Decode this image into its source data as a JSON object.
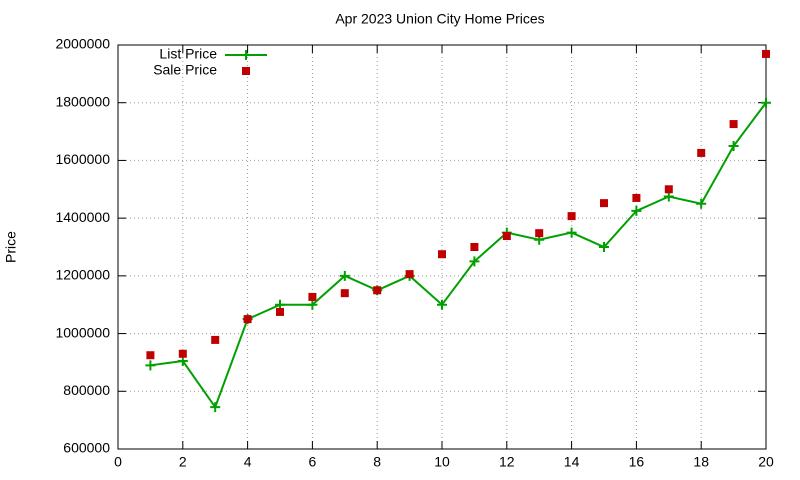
{
  "chart_data": {
    "type": "line",
    "title": "Apr 2023 Union City Home Prices",
    "ylabel": "Price",
    "x": [
      1,
      2,
      3,
      4,
      5,
      6,
      7,
      8,
      9,
      10,
      11,
      12,
      13,
      14,
      15,
      16,
      17,
      18,
      19,
      20
    ],
    "series": [
      {
        "name": "List Price",
        "color": "#00a000",
        "line": true,
        "marker": "plus",
        "values": [
          890000,
          905000,
          745000,
          1050000,
          1100000,
          1100000,
          1200000,
          1150000,
          1200000,
          1100000,
          1250000,
          1350000,
          1325000,
          1350000,
          1300000,
          1425000,
          1475000,
          1450000,
          1650000,
          1800000
        ]
      },
      {
        "name": "Sale Price",
        "color": "#c00000",
        "line": false,
        "marker": "square",
        "values": [
          925000,
          930000,
          978000,
          1050000,
          1075000,
          1127000,
          1140000,
          1150000,
          1206000,
          1275000,
          1300000,
          1338000,
          1348000,
          1407000,
          1452000,
          1470000,
          1500000,
          1626000,
          1726000,
          1969000
        ]
      }
    ],
    "xlim": [
      0,
      20
    ],
    "xticks": [
      0,
      2,
      4,
      6,
      8,
      10,
      12,
      14,
      16,
      18,
      20
    ],
    "ylim": [
      600000,
      2000000
    ],
    "yticks": [
      600000,
      800000,
      1000000,
      1200000,
      1400000,
      1600000,
      1800000,
      2000000
    ],
    "grid": true,
    "legend": "top-left"
  }
}
